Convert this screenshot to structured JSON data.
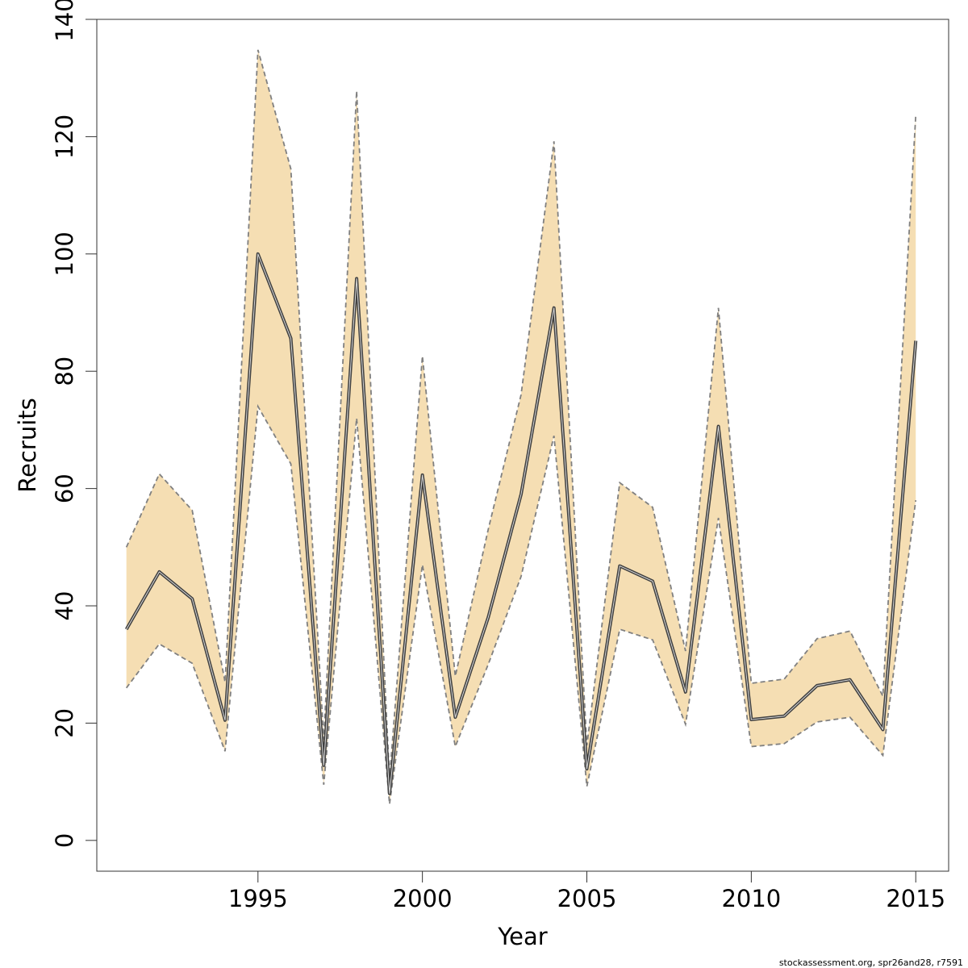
{
  "chart_data": {
    "type": "line",
    "xlabel": "Year",
    "ylabel": "Recruits",
    "xlim": [
      1990.1,
      2016.0
    ],
    "ylim": [
      -5.25,
      140
    ],
    "x_ticks": [
      1995,
      2000,
      2005,
      2010,
      2015
    ],
    "y_ticks": [
      0,
      20,
      40,
      60,
      80,
      100,
      120,
      140
    ],
    "colors": {
      "band": "#f5deb3",
      "bound_line": "#808080",
      "main_line": "#404040"
    },
    "series": [
      {
        "x": [
          1991,
          1992,
          1993,
          1994,
          1995,
          1996,
          1997,
          1998,
          1999,
          2000,
          2001,
          2002,
          2003,
          2004,
          2005,
          2006,
          2007,
          2008,
          2009,
          2010,
          2011,
          2012,
          2013,
          2014,
          2015
        ],
        "values": [
          36,
          45.8,
          41.2,
          20.5,
          100,
          85.6,
          12.8,
          95.8,
          8,
          62.3,
          21,
          38,
          59,
          90.8,
          12.2,
          46.8,
          44.2,
          25.3,
          70.6,
          20.6,
          21.2,
          26.4,
          27.4,
          18.9,
          85.2
        ],
        "lower": [
          26,
          33.5,
          30.2,
          15.2,
          74,
          64.2,
          9.5,
          72,
          6.2,
          47,
          16,
          30,
          45,
          69,
          9.2,
          36,
          34.2,
          19.8,
          55,
          16,
          16.5,
          20.2,
          21,
          14.5,
          58
        ],
        "upper": [
          50,
          62.5,
          56.3,
          27,
          134.8,
          114.5,
          17.2,
          127.8,
          10.5,
          82.6,
          28,
          53,
          76,
          119.2,
          16.2,
          61,
          56.8,
          32.3,
          90.8,
          26.8,
          27.5,
          34.4,
          35.7,
          24.6,
          123.6
        ]
      }
    ]
  },
  "footer_note": "stockassessment.org, spr26and28, r7591"
}
